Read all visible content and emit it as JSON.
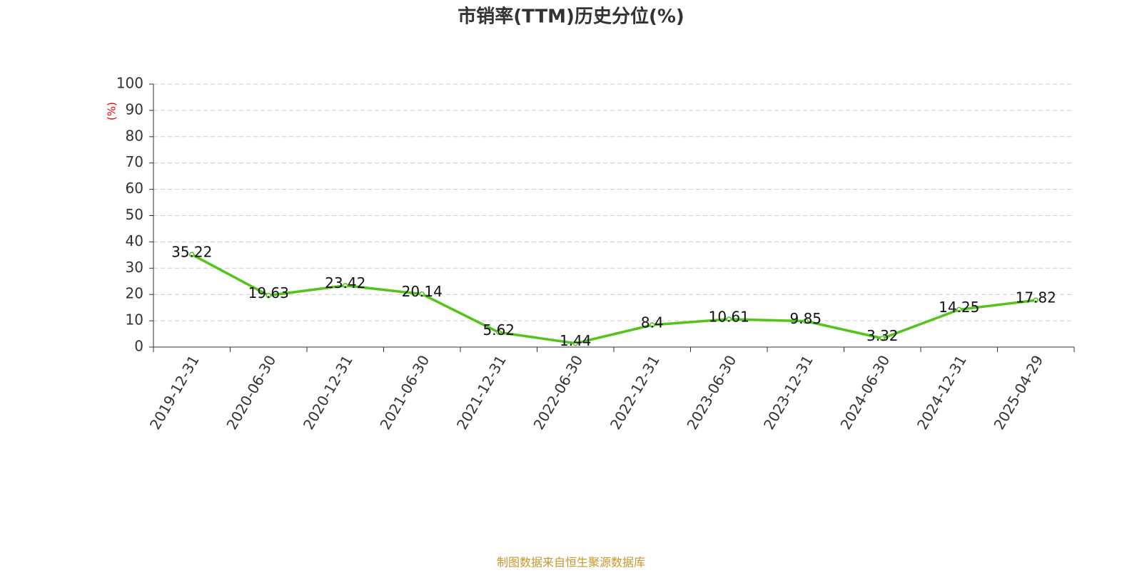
{
  "chart_data": {
    "type": "line",
    "title": "市销率(TTM)历史分位(%)",
    "y_label": "(%)",
    "categories": [
      "2019-12-31",
      "2020-06-30",
      "2020-12-31",
      "2021-06-30",
      "2021-12-31",
      "2022-06-30",
      "2022-12-31",
      "2023-06-30",
      "2023-12-31",
      "2024-06-30",
      "2024-12-31",
      "2025-04-29"
    ],
    "series": [
      {
        "name": "市销率(TTM)历史分位",
        "color": "#52c41a",
        "values": [
          35.22,
          19.63,
          23.42,
          20.14,
          5.62,
          1.44,
          8.4,
          10.61,
          9.85,
          3.32,
          14.25,
          17.82
        ]
      }
    ],
    "ylim": [
      0,
      100
    ],
    "yticks": [
      0,
      10,
      20,
      30,
      40,
      50,
      60,
      70,
      80,
      90,
      100
    ],
    "grid": true,
    "source": "制图数据来自恒生聚源数据库"
  }
}
